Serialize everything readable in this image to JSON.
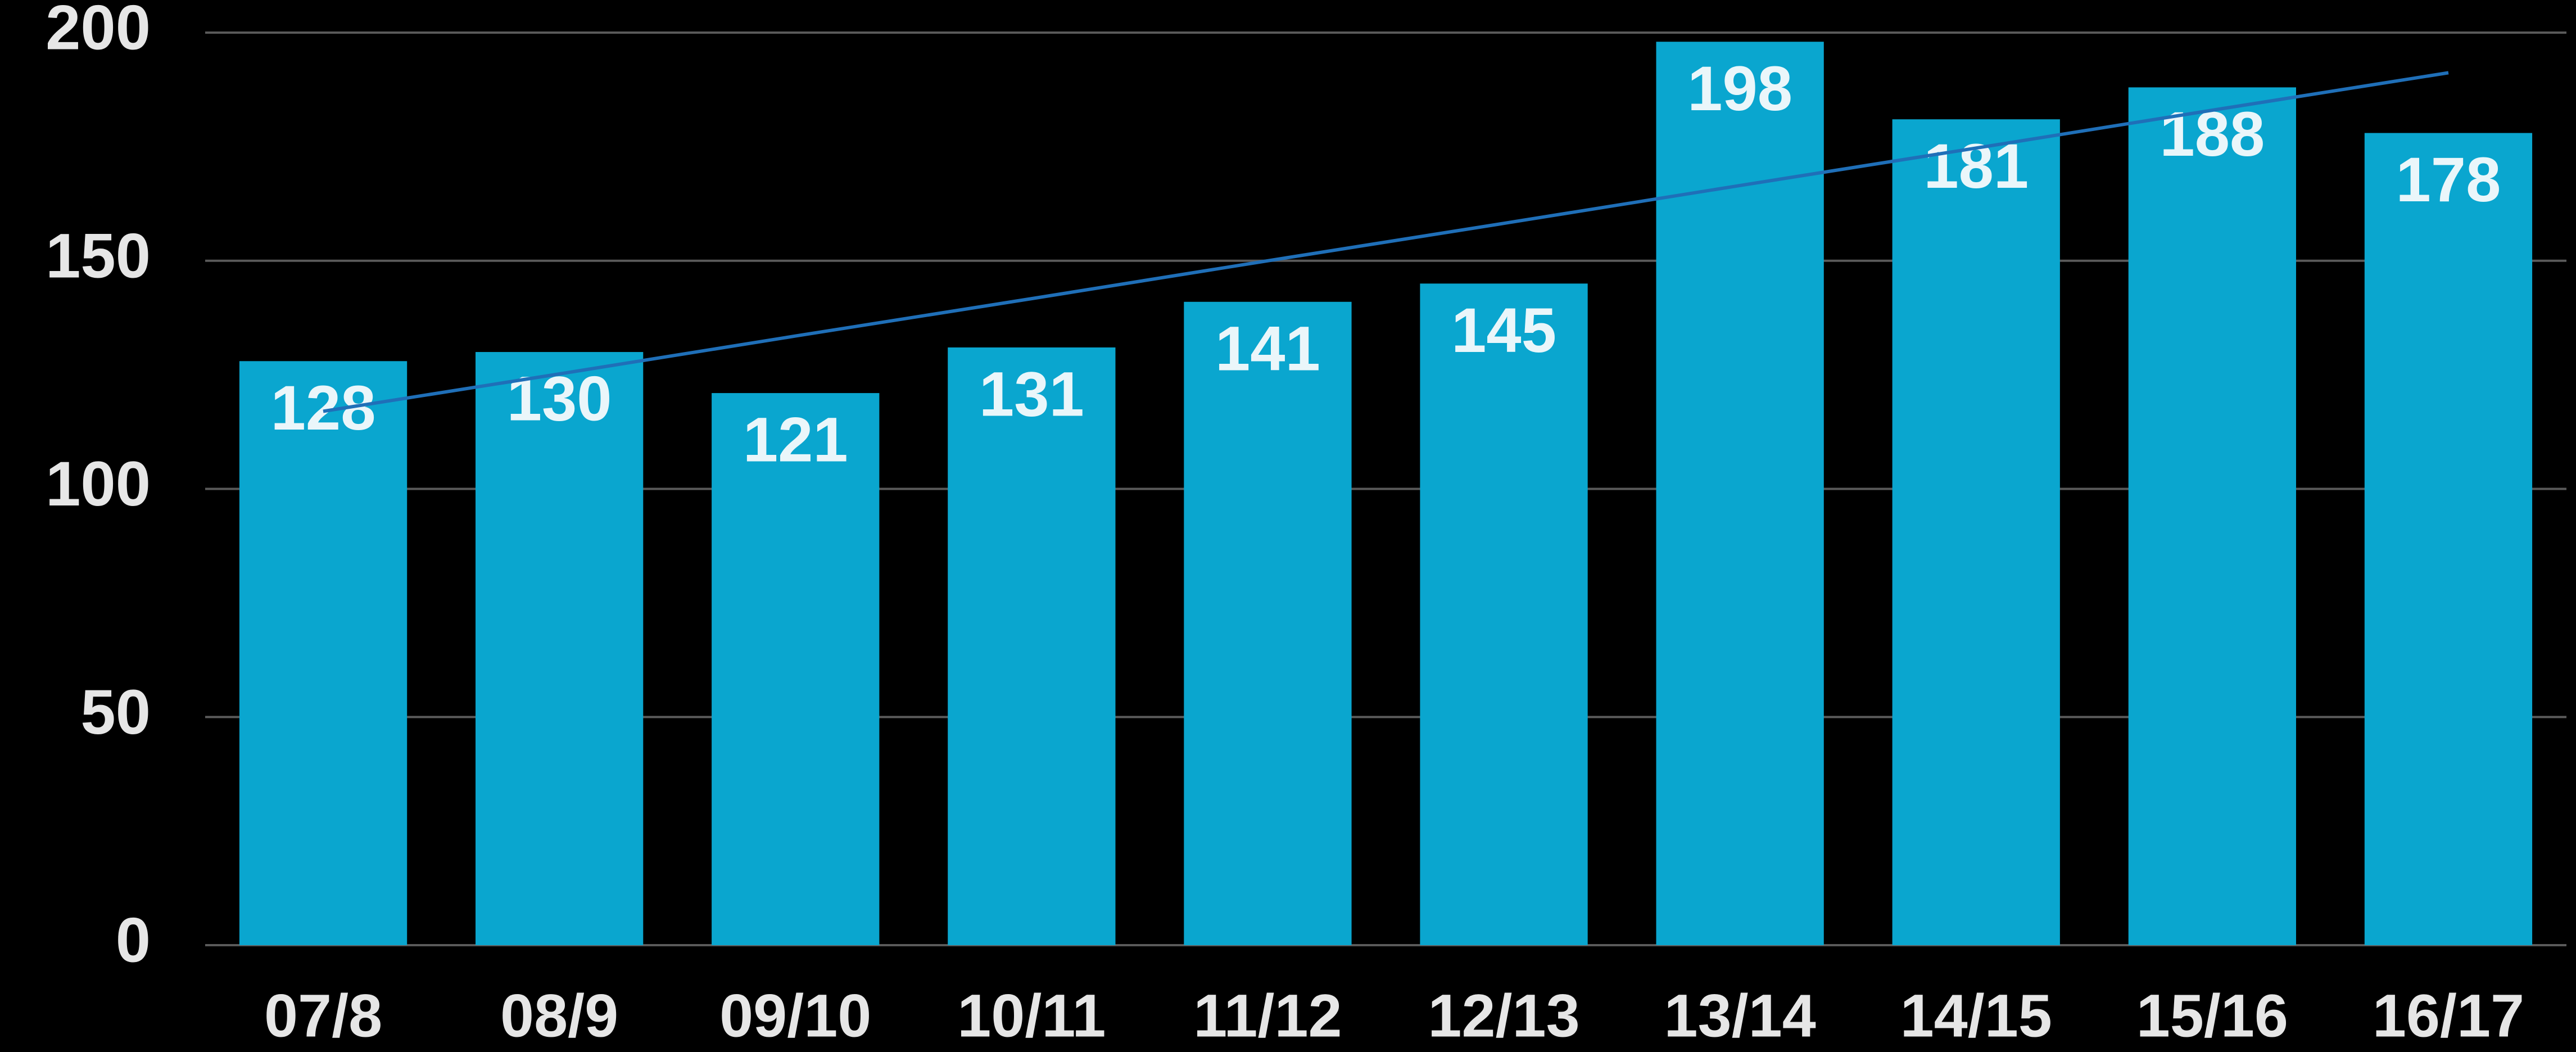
{
  "chart_data": {
    "type": "bar",
    "categories": [
      "07/8",
      "08/9",
      "09/10",
      "10/11",
      "11/12",
      "12/13",
      "13/14",
      "14/15",
      "15/16",
      "16/17"
    ],
    "values": [
      128,
      130,
      121,
      131,
      141,
      145,
      198,
      181,
      188,
      178
    ],
    "color": "#0aa6cf",
    "trend": {
      "values": [
        117.0,
        125.2,
        133.5,
        141.7,
        150.0,
        158.2,
        166.5,
        174.7,
        183.0,
        191.2
      ],
      "color": "#1f6fb8"
    },
    "ylim": [
      0,
      200
    ],
    "yticks": [
      0,
      50,
      100,
      150,
      200
    ],
    "grid": true
  }
}
